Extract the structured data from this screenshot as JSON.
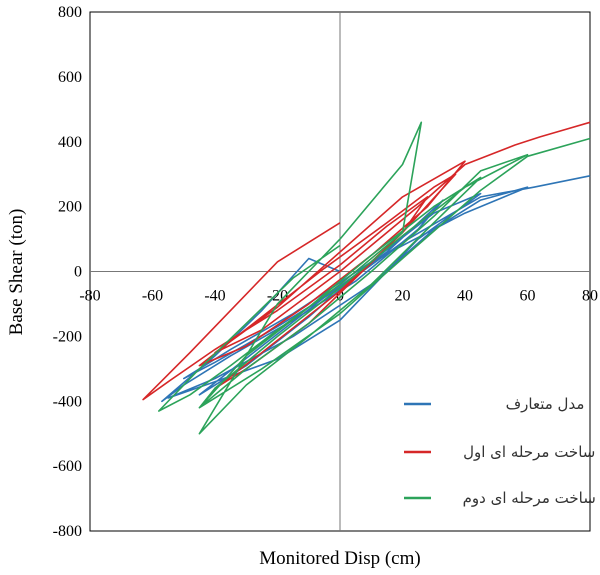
{
  "chart_data": {
    "type": "line",
    "xlabel": "Monitored Disp (cm)",
    "ylabel": "Base Shear (ton)",
    "xlim": [
      -80,
      80
    ],
    "ylim": [
      -800,
      800
    ],
    "xticks": [
      "-80",
      "-60",
      "-40",
      "-20",
      "0",
      "20",
      "40",
      "60",
      "80"
    ],
    "yticks": [
      "800",
      "600",
      "400",
      "200",
      "0",
      "-200",
      "-400",
      "-600",
      "-800"
    ],
    "grid": false,
    "legend_position": "bottom-right",
    "series": [
      {
        "name": "مدل متعارف",
        "color": "#2e75b6",
        "x": [
          0,
          -10,
          -25,
          -40,
          -57,
          -50,
          -35,
          -15,
          5,
          25,
          33,
          15,
          -5,
          -25,
          -45,
          -30,
          -10,
          10,
          30,
          45,
          25,
          0,
          -20,
          -40,
          -55,
          -40,
          -15,
          10,
          30,
          45,
          60,
          40,
          10,
          -15,
          -35,
          -50,
          -40,
          -20,
          0,
          20,
          45,
          62,
          80
        ],
        "y": [
          0,
          40,
          -120,
          -260,
          -400,
          -350,
          -260,
          -150,
          -30,
          130,
          220,
          60,
          -80,
          -230,
          -380,
          -290,
          -140,
          30,
          180,
          240,
          100,
          -150,
          -270,
          -340,
          -390,
          -330,
          -200,
          -40,
          130,
          220,
          260,
          180,
          30,
          -130,
          -240,
          -330,
          -280,
          -170,
          -50,
          90,
          230,
          260,
          295
        ]
      },
      {
        "name": "مدل ساخت مرحله ای اول",
        "color": "#d62728",
        "x": [
          0,
          -20,
          -35,
          -48,
          -63,
          -55,
          -40,
          -20,
          0,
          15,
          28,
          20,
          5,
          -10,
          -30,
          -40,
          -25,
          0,
          20,
          37,
          30,
          15,
          -5,
          -25,
          -45,
          -30,
          -10,
          10,
          28,
          40,
          20,
          0,
          -20,
          -40,
          -25,
          0,
          25,
          40,
          56,
          64,
          80
        ],
        "y": [
          150,
          30,
          -120,
          -250,
          -395,
          -340,
          -240,
          -120,
          20,
          140,
          230,
          120,
          -20,
          -160,
          -300,
          -360,
          -250,
          -60,
          120,
          300,
          260,
          150,
          10,
          -140,
          -290,
          -230,
          -100,
          50,
          200,
          340,
          230,
          60,
          -110,
          -250,
          -180,
          0,
          200,
          330,
          390,
          415,
          460
        ]
      },
      {
        "name": "مدل ساخت مرحله ای دوم",
        "color": "#2ca35a",
        "x": [
          0,
          -15,
          -30,
          -45,
          -58,
          -48,
          -35,
          -20,
          0,
          20,
          26,
          20,
          0,
          -20,
          -45,
          -30,
          -10,
          10,
          30,
          45,
          30,
          10,
          -10,
          -30,
          -45,
          -30,
          -10,
          10,
          30,
          45,
          60,
          40,
          20,
          0,
          -20,
          -40,
          -45,
          -25,
          0,
          20,
          45,
          60,
          80
        ],
        "y": [
          80,
          -20,
          -160,
          -300,
          -430,
          -380,
          -290,
          -180,
          -40,
          120,
          460,
          330,
          100,
          -100,
          -500,
          -350,
          -200,
          -40,
          150,
          290,
          200,
          50,
          -110,
          -260,
          -420,
          -300,
          -160,
          0,
          170,
          310,
          360,
          260,
          110,
          -50,
          -200,
          -360,
          -420,
          -300,
          -130,
          40,
          250,
          355,
          410
        ]
      }
    ]
  }
}
